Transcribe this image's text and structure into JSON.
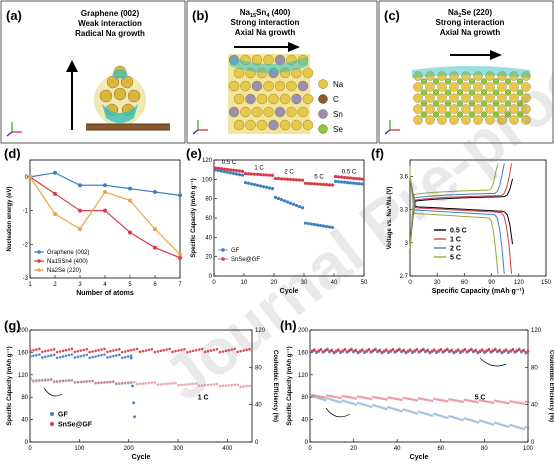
{
  "panels": {
    "a": {
      "label": "(a)",
      "lines": [
        "Graphene (002)",
        "Weak interaction",
        "Radical Na growth"
      ]
    },
    "b": {
      "label": "(b)",
      "lines": [
        "Na15Sn4 (400)",
        "Strong interaction",
        "Axial Na growth"
      ]
    },
    "c": {
      "label": "(c)",
      "lines": [
        "Na2Se (220)",
        "Strong interaction",
        "Axial Na growth"
      ]
    },
    "legend_atoms": [
      {
        "name": "Na",
        "color": "#e6c84a"
      },
      {
        "name": "C",
        "color": "#8a5a2b"
      },
      {
        "name": "Sn",
        "color": "#9a8fb0"
      },
      {
        "name": "Se",
        "color": "#8cc63f"
      }
    ],
    "d": {
      "label": "(d)"
    },
    "e": {
      "label": "(e)"
    },
    "f": {
      "label": "(f)"
    },
    "g": {
      "label": "(g)"
    },
    "h": {
      "label": "(h)"
    }
  },
  "watermark": "Journal Pre-proof",
  "chart_data": [
    {
      "id": "d",
      "type": "line",
      "xlabel": "Number of atoms",
      "ylabel": "Nucleation energy (eV)",
      "xlim": [
        1,
        7
      ],
      "ylim": [
        -3,
        0.5
      ],
      "xticks": [
        1,
        2,
        3,
        4,
        5,
        6,
        7
      ],
      "yticks": [
        0,
        -1,
        -2,
        -3
      ],
      "series": [
        {
          "name": "Graphene (002)",
          "color": "#3b82c4",
          "x": [
            1,
            2,
            3,
            4,
            5,
            6,
            7
          ],
          "y": [
            0,
            0.12,
            -0.25,
            -0.25,
            -0.35,
            -0.45,
            -0.55
          ]
        },
        {
          "name": "Na15Sn4 (400)",
          "color": "#d93a49",
          "x": [
            1,
            2,
            3,
            4,
            5,
            6,
            7
          ],
          "y": [
            0,
            -0.5,
            -1.0,
            -1.0,
            -1.65,
            -2.1,
            -2.4
          ]
        },
        {
          "name": "Na2Se (220)",
          "color": "#f0a23c",
          "x": [
            1,
            2,
            3,
            4,
            5,
            6,
            7
          ],
          "y": [
            0,
            -1.1,
            -1.55,
            -0.45,
            -0.7,
            -1.55,
            -2.3
          ]
        }
      ]
    },
    {
      "id": "e",
      "type": "scatter",
      "xlabel": "Cycle",
      "ylabel": "Specific Capacity (mAh g⁻¹)",
      "xlim": [
        0,
        50
      ],
      "ylim": [
        0,
        120
      ],
      "xticks": [
        0,
        10,
        20,
        30,
        40,
        50
      ],
      "yticks": [
        0,
        20,
        40,
        60,
        80,
        100,
        120
      ],
      "annotations": [
        "0.5 C",
        "1 C",
        "2 C",
        "5 C",
        "0.5 C"
      ],
      "series": [
        {
          "name": "GF",
          "color": "#3b82c4",
          "segments": [
            [
              0,
              10,
              110,
              104
            ],
            [
              10,
              20,
              97,
              90
            ],
            [
              20,
              30,
              82,
              70
            ],
            [
              30,
              40,
              55,
              50
            ],
            [
              40,
              50,
              98,
              95
            ]
          ]
        },
        {
          "name": "SnSe@GF",
          "color": "#d93a49",
          "segments": [
            [
              0,
              10,
              112,
              108
            ],
            [
              10,
              20,
              106,
              104
            ],
            [
              20,
              30,
              101,
              99
            ],
            [
              30,
              40,
              96,
              94
            ],
            [
              40,
              50,
              103,
              100
            ]
          ]
        }
      ]
    },
    {
      "id": "f",
      "type": "line",
      "xlabel": "Specific Capacity (mAh g⁻¹)",
      "ylabel": "Voltage vs. Na⁺/Na (V)",
      "xlim": [
        0,
        150
      ],
      "ylim": [
        2.7,
        3.75
      ],
      "xticks": [
        0,
        30,
        60,
        90,
        120,
        150
      ],
      "yticks": [
        2.7,
        3.0,
        3.3,
        3.6
      ],
      "series": [
        {
          "name": "0.5 C",
          "color": "#000000",
          "capacity": 116,
          "charge": 3.37,
          "discharge": 3.33
        },
        {
          "name": "1 C",
          "color": "#d93a49",
          "capacity": 112,
          "charge": 3.38,
          "discharge": 3.32
        },
        {
          "name": "2 C",
          "color": "#3b82c4",
          "capacity": 104,
          "charge": 3.4,
          "discharge": 3.3
        },
        {
          "name": "5 C",
          "color": "#9aa53a",
          "capacity": 97,
          "charge": 3.43,
          "discharge": 3.27
        }
      ]
    },
    {
      "id": "g",
      "type": "scatter",
      "xlabel": "Cycle",
      "ylabel": "Specific Capacity (mAh g⁻¹)",
      "y2label": "Coulombic Efficiency (%)",
      "annotation": "1 C",
      "xlim": [
        0,
        450
      ],
      "ylim": [
        0,
        200
      ],
      "y2lim": [
        0,
        120
      ],
      "xticks": [
        0,
        100,
        200,
        300,
        400
      ],
      "yticks": [
        0,
        40,
        80,
        120,
        160,
        200
      ],
      "y2ticks": [
        0,
        40,
        80,
        120
      ],
      "series": [
        {
          "name": "GF",
          "color": "#3b82c4",
          "capacity_start": 112,
          "capacity_end": 104,
          "ce": 92,
          "fails_at": 205
        },
        {
          "name": "SnSe@GF",
          "color": "#d93a49",
          "capacity_start": 110,
          "capacity_end": 100,
          "ce": 98,
          "fails_at": null
        }
      ]
    },
    {
      "id": "h",
      "type": "scatter",
      "xlabel": "Cycle",
      "ylabel": "Specific Capacity (mAh g⁻¹)",
      "y2label": "Coulombic Efficiency (%)",
      "annotation": "5 C",
      "xlim": [
        0,
        100
      ],
      "ylim": [
        0,
        200
      ],
      "y2lim": [
        0,
        120
      ],
      "xticks": [
        0,
        20,
        40,
        60,
        80,
        100
      ],
      "yticks": [
        0,
        40,
        80,
        120,
        160,
        200
      ],
      "y2ticks": [
        0,
        40,
        80,
        120
      ],
      "series": [
        {
          "name": "GF",
          "color": "#3b82c4",
          "capacity_start": 80,
          "capacity_end": 24,
          "ce": 97
        },
        {
          "name": "SnSe@GF",
          "color": "#d93a49",
          "capacity_start": 82,
          "capacity_end": 70,
          "ce": 98
        }
      ]
    }
  ]
}
